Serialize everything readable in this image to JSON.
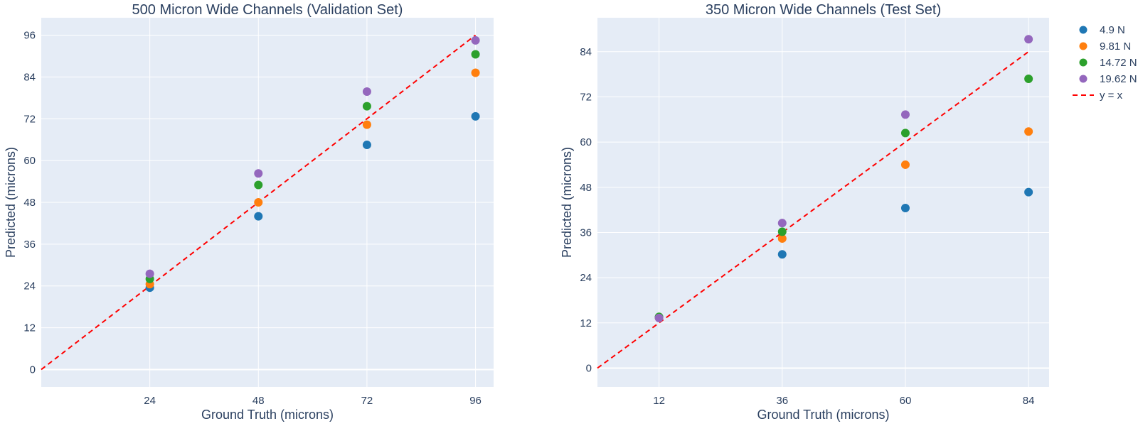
{
  "colors": {
    "plot_bg": "#e5ecf6",
    "grid": "#ffffff",
    "text": "#2a3f5f",
    "identity_line": "#ff0000"
  },
  "legend": {
    "placement": "right",
    "items": [
      {
        "label": "4.9 N",
        "color": "#1f77b4",
        "kind": "marker"
      },
      {
        "label": "9.81 N",
        "color": "#ff7f0e",
        "kind": "marker"
      },
      {
        "label": "14.72 N",
        "color": "#2ca02c",
        "kind": "marker"
      },
      {
        "label": "19.62 N",
        "color": "#9467bd",
        "kind": "marker"
      },
      {
        "label": "y = x",
        "color": "#ff0000",
        "kind": "dash"
      }
    ]
  },
  "chart_data": [
    {
      "type": "scatter",
      "title": "500 Micron Wide Channels (Validation Set)",
      "xlabel": "Ground Truth (microns)",
      "ylabel": "Predicted (microns)",
      "xlim": [
        0,
        100
      ],
      "ylim": [
        -5,
        101
      ],
      "xticks": [
        24,
        48,
        72,
        96
      ],
      "yticks": [
        0,
        12,
        24,
        36,
        48,
        60,
        72,
        84,
        96
      ],
      "grid": true,
      "x": [
        24,
        48,
        72,
        96
      ],
      "series": [
        {
          "name": "4.9 N",
          "color": "#1f77b4",
          "values": [
            23.5,
            44,
            64.5,
            72.7
          ]
        },
        {
          "name": "9.81 N",
          "color": "#ff7f0e",
          "values": [
            24.5,
            48,
            70.3,
            85.2
          ]
        },
        {
          "name": "14.72 N",
          "color": "#2ca02c",
          "values": [
            26,
            53,
            75.6,
            90.5
          ]
        },
        {
          "name": "19.62 N",
          "color": "#9467bd",
          "values": [
            27.5,
            56.3,
            79.8,
            94.5
          ]
        }
      ],
      "identity_line": {
        "name": "y = x",
        "from": [
          0,
          0
        ],
        "to": [
          96,
          96
        ]
      }
    },
    {
      "type": "scatter",
      "title": "350 Micron Wide Channels (Test Set)",
      "xlabel": "Ground Truth (microns)",
      "ylabel": "Predicted (microns)",
      "xlim": [
        0,
        88
      ],
      "ylim": [
        -5,
        93
      ],
      "xticks": [
        12,
        36,
        60,
        84
      ],
      "yticks": [
        0,
        12,
        24,
        36,
        48,
        60,
        72,
        84
      ],
      "grid": true,
      "x": [
        12,
        36,
        60,
        84
      ],
      "series": [
        {
          "name": "4.9 N",
          "color": "#1f77b4",
          "values": [
            13.5,
            30.2,
            42.5,
            46.7
          ]
        },
        {
          "name": "9.81 N",
          "color": "#ff7f0e",
          "values": [
            13.4,
            34.4,
            54,
            62.8
          ]
        },
        {
          "name": "14.72 N",
          "color": "#2ca02c",
          "values": [
            13.6,
            36.2,
            62.4,
            76.8
          ]
        },
        {
          "name": "19.62 N",
          "color": "#9467bd",
          "values": [
            13.3,
            38.5,
            67.3,
            87.3
          ]
        }
      ],
      "identity_line": {
        "name": "y = x",
        "from": [
          0,
          0
        ],
        "to": [
          84,
          84
        ]
      }
    }
  ]
}
